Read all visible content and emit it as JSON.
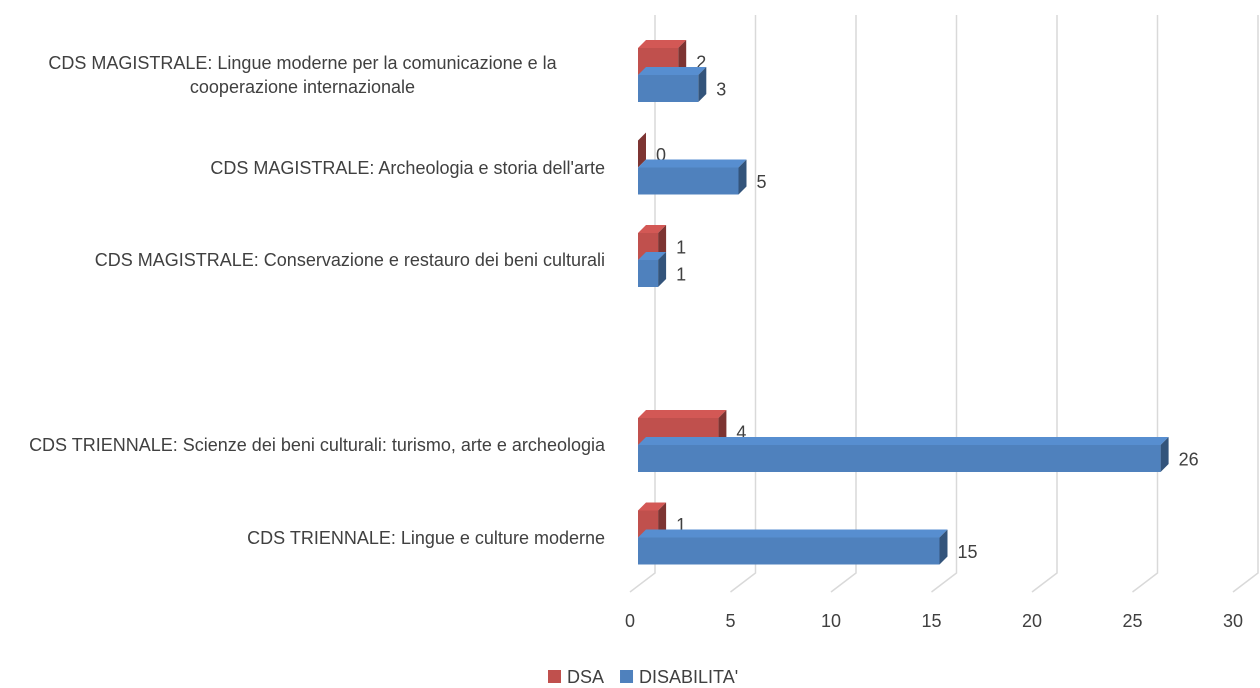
{
  "chart_data": {
    "type": "bar",
    "orientation": "horizontal",
    "three_d": true,
    "categories": [
      "CDS TRIENNALE: Lingue e culture moderne",
      "CDS TRIENNALE: Scienze dei beni culturali: turismo, arte e archeologia",
      null,
      "CDS MAGISTRALE: Conservazione e restauro dei beni culturali",
      "CDS MAGISTRALE: Archeologia e storia dell'arte",
      "CDS MAGISTRALE: Lingue moderne per la comunicazione e la cooperazione internazionale"
    ],
    "series": [
      {
        "name": "DSA",
        "color": "#c0504d",
        "values": [
          1,
          4,
          null,
          1,
          0,
          2
        ]
      },
      {
        "name": "DISABILITA'",
        "color": "#4f81bd",
        "values": [
          15,
          26,
          null,
          1,
          5,
          3
        ]
      }
    ],
    "xlim": [
      0,
      30
    ],
    "xticks": [
      0,
      5,
      10,
      15,
      20,
      25,
      30
    ],
    "grid": true,
    "legend": "bottom"
  }
}
